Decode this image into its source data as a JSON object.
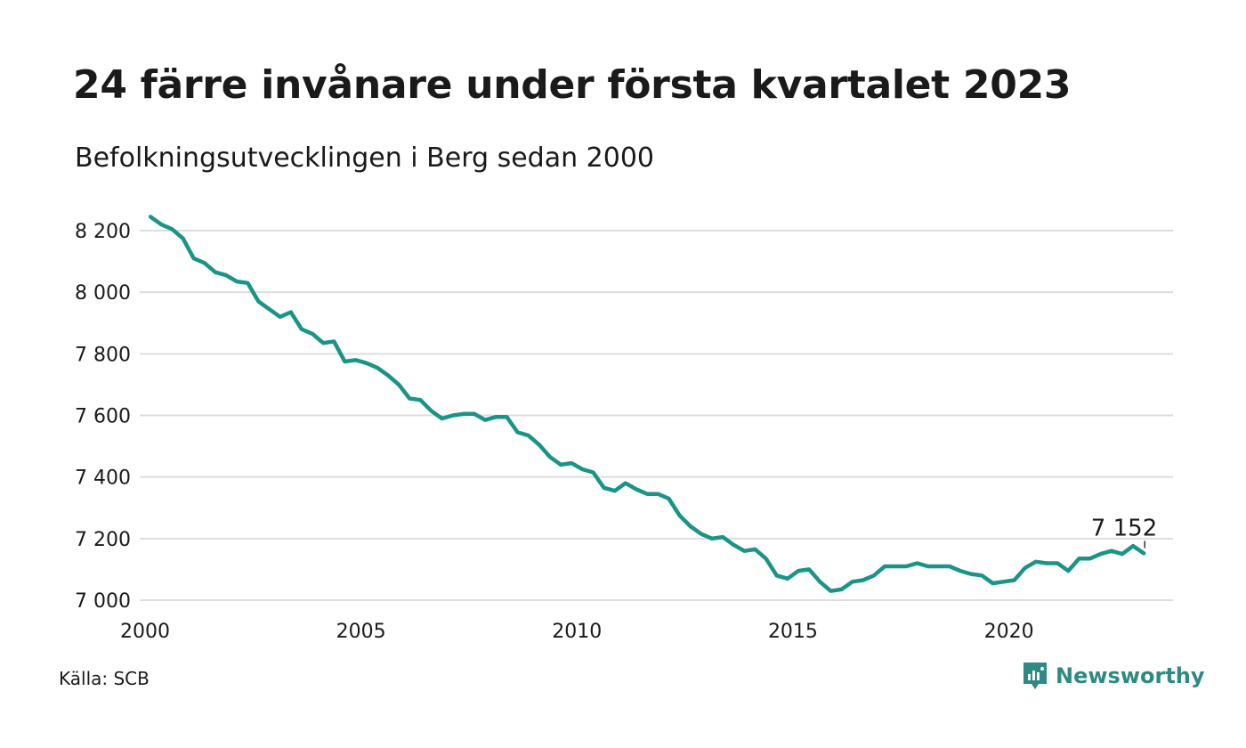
{
  "header": {
    "title": "24 färre invånare under första kvartalet 2023",
    "subtitle": "Befolkningsutvecklingen i Berg sedan 2000"
  },
  "footer": {
    "source": "Källa: SCB",
    "brand": "Newsworthy"
  },
  "colors": {
    "line": "#1b9488",
    "grid": "#dddddd",
    "brand": "#2e8a82"
  },
  "chart_data": {
    "type": "line",
    "title": "",
    "xlabel": "",
    "ylabel": "",
    "xlim": [
      2000,
      2023.8
    ],
    "ylim": [
      7000,
      8200
    ],
    "yticks": [
      {
        "value": 8200,
        "label": "8 200"
      },
      {
        "value": 8000,
        "label": "8 000"
      },
      {
        "value": 7800,
        "label": "7 800"
      },
      {
        "value": 7600,
        "label": "7 600"
      },
      {
        "value": 7400,
        "label": "7 400"
      },
      {
        "value": 7200,
        "label": "7 200"
      },
      {
        "value": 7000,
        "label": "7 000"
      }
    ],
    "xticks": [
      {
        "value": 2000,
        "label": "2000"
      },
      {
        "value": 2005,
        "label": "2005"
      },
      {
        "value": 2010,
        "label": "2010"
      },
      {
        "value": 2015,
        "label": "2015"
      },
      {
        "value": 2020,
        "label": "2020"
      }
    ],
    "grid": true,
    "end_label": "7 152",
    "series": [
      {
        "x": [
          "2000Q1",
          "2000Q2",
          "2000Q3",
          "2000Q4",
          "2001Q1",
          "2001Q2",
          "2001Q3",
          "2001Q4",
          "2002Q1",
          "2002Q2",
          "2002Q3",
          "2002Q4",
          "2003Q1",
          "2003Q2",
          "2003Q3",
          "2003Q4",
          "2004Q1",
          "2004Q2",
          "2004Q3",
          "2004Q4",
          "2005Q1",
          "2005Q2",
          "2005Q3",
          "2005Q4",
          "2006Q1",
          "2006Q2",
          "2006Q3",
          "2006Q4",
          "2007Q1",
          "2007Q2",
          "2007Q3",
          "2007Q4",
          "2008Q1",
          "2008Q2",
          "2008Q3",
          "2008Q4",
          "2009Q1",
          "2009Q2",
          "2009Q3",
          "2009Q4",
          "2010Q1",
          "2010Q2",
          "2010Q3",
          "2010Q4",
          "2011Q1",
          "2011Q2",
          "2011Q3",
          "2011Q4",
          "2012Q1",
          "2012Q2",
          "2012Q3",
          "2012Q4",
          "2013Q1",
          "2013Q2",
          "2013Q3",
          "2013Q4",
          "2014Q1",
          "2014Q2",
          "2014Q3",
          "2014Q4",
          "2015Q1",
          "2015Q2",
          "2015Q3",
          "2015Q4",
          "2016Q1",
          "2016Q2",
          "2016Q3",
          "2016Q4",
          "2017Q1",
          "2017Q2",
          "2017Q3",
          "2017Q4",
          "2018Q1",
          "2018Q2",
          "2018Q3",
          "2018Q4",
          "2019Q1",
          "2019Q2",
          "2019Q3",
          "2019Q4",
          "2020Q1",
          "2020Q2",
          "2020Q3",
          "2020Q4",
          "2021Q1",
          "2021Q2",
          "2021Q3",
          "2021Q4",
          "2022Q1",
          "2022Q2",
          "2022Q3",
          "2022Q4",
          "2023Q1"
        ],
        "values": [
          8245,
          8220,
          8205,
          8175,
          8110,
          8095,
          8065,
          8055,
          8035,
          8030,
          7970,
          7945,
          7920,
          7935,
          7880,
          7865,
          7835,
          7840,
          7775,
          7780,
          7770,
          7755,
          7730,
          7700,
          7655,
          7650,
          7615,
          7590,
          7600,
          7605,
          7605,
          7585,
          7595,
          7595,
          7545,
          7535,
          7505,
          7465,
          7440,
          7445,
          7425,
          7415,
          7365,
          7355,
          7380,
          7360,
          7345,
          7345,
          7330,
          7275,
          7240,
          7215,
          7200,
          7205,
          7180,
          7160,
          7165,
          7135,
          7080,
          7070,
          7095,
          7100,
          7060,
          7030,
          7035,
          7060,
          7065,
          7080,
          7110,
          7110,
          7110,
          7120,
          7110,
          7110,
          7110,
          7095,
          7085,
          7080,
          7055,
          7060,
          7065,
          7105,
          7125,
          7120,
          7120,
          7095,
          7135,
          7135,
          7150,
          7160,
          7150,
          7176,
          7152
        ]
      }
    ]
  }
}
